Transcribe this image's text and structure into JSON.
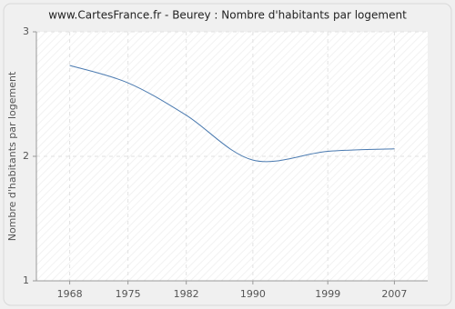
{
  "chart_data": {
    "type": "line",
    "title": "www.CartesFrance.fr - Beurey : Nombre d'habitants par logement",
    "y_label": "Nombre d'habitants par logement",
    "x": [
      1968,
      1975,
      1982,
      1990,
      1999,
      2007
    ],
    "series": [
      {
        "name": "Beurey",
        "color": "#4a7ab0",
        "values": [
          2.73,
          2.59,
          2.33,
          1.97,
          2.04,
          2.06
        ]
      }
    ],
    "xlim": [
      1964,
      2011
    ],
    "xticks": [
      1968,
      1975,
      1982,
      1990,
      1999,
      2007
    ],
    "ylim": [
      1,
      3
    ],
    "yticks": [
      1,
      2,
      3
    ],
    "grid": true
  }
}
